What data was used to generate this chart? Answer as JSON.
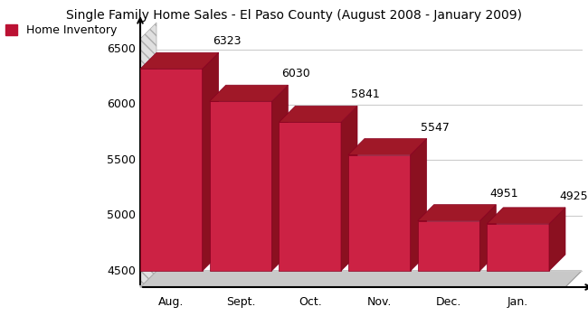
{
  "title": "Single Family Home Sales - El Paso County (August 2008 - January 2009)",
  "categories": [
    "Aug.",
    "Sept.",
    "Oct.",
    "Nov.",
    "Dec.",
    "Jan."
  ],
  "values": [
    6323,
    6030,
    5841,
    5547,
    4951,
    4925
  ],
  "bar_color_front": "#cc2244",
  "bar_color_front_light": "#e06080",
  "bar_color_side": "#8b1020",
  "bar_color_top": "#a01828",
  "ymin": 4500,
  "ymax": 6700,
  "yticks": [
    4500,
    5000,
    5500,
    6000,
    6500
  ],
  "legend_label": "Home Inventory",
  "legend_color": "#bb1133",
  "bg_color": "#ffffff",
  "grid_color": "#cccccc",
  "floor_color": "#c8c8c8",
  "wall_hatch_color": "#aaaaaa",
  "wall_bg_color": "#e0e0e0"
}
